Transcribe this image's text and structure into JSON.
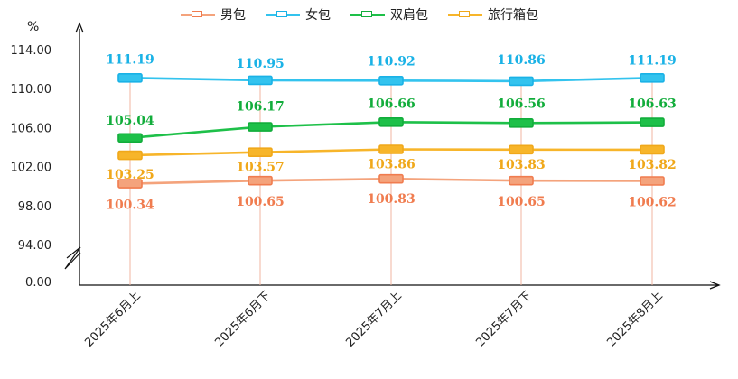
{
  "chart_data": {
    "type": "line",
    "title": "",
    "unit_label": "%",
    "categories": [
      "2025年6月上",
      "2025年6月下",
      "2025年7月上",
      "2025年7月下",
      "2025年8月上"
    ],
    "y_ticks": [
      "0.00",
      "94.00",
      "98.00",
      "102.00",
      "106.00",
      "110.00",
      "114.00"
    ],
    "ylim": [
      94,
      114
    ],
    "axis_break": true,
    "series": [
      {
        "name": "男包",
        "color": "#f4a37c",
        "label_color": "#f07c4f",
        "values": [
          100.34,
          100.65,
          100.83,
          100.65,
          100.62
        ],
        "labels": [
          "100.34",
          "100.65",
          "100.83",
          "100.65",
          "100.62"
        ]
      },
      {
        "name": "女包",
        "color": "#33c3ee",
        "label_color": "#1ab2e6",
        "values": [
          111.19,
          110.95,
          110.92,
          110.86,
          111.19
        ],
        "labels": [
          "111.19",
          "110.95",
          "110.92",
          "110.86",
          "111.19"
        ]
      },
      {
        "name": "双肩包",
        "color": "#1ec049",
        "label_color": "#12ad3b",
        "values": [
          105.04,
          106.17,
          106.66,
          106.56,
          106.63
        ],
        "labels": [
          "105.04",
          "106.17",
          "106.66",
          "106.56",
          "106.63"
        ]
      },
      {
        "name": "旅行箱包",
        "color": "#f7b52a",
        "label_color": "#f0a81a",
        "values": [
          103.25,
          103.57,
          103.86,
          103.83,
          103.82
        ],
        "labels": [
          "103.25",
          "103.57",
          "103.86",
          "103.83",
          "103.82"
        ]
      }
    ],
    "legend_position": "top"
  }
}
